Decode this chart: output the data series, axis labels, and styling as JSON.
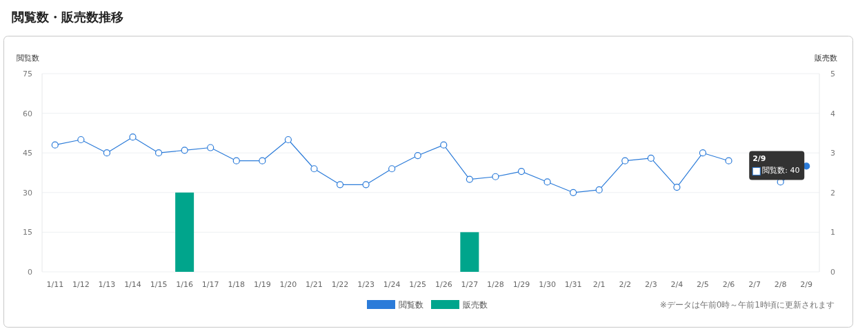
{
  "chart_data": {
    "type": "line",
    "title": "閲覧数・販売数推移",
    "ylabel": "閲覧数",
    "y2label": "販売数",
    "categories": [
      "1/11",
      "1/12",
      "1/13",
      "1/14",
      "1/15",
      "1/16",
      "1/17",
      "1/18",
      "1/19",
      "1/20",
      "1/21",
      "1/22",
      "1/23",
      "1/24",
      "1/25",
      "1/26",
      "1/27",
      "1/28",
      "1/29",
      "1/30",
      "1/31",
      "2/1",
      "2/2",
      "2/3",
      "2/4",
      "2/5",
      "2/6",
      "2/7",
      "2/8",
      "2/9"
    ],
    "series": [
      {
        "name": "閲覧数",
        "color": "#2b7bd9",
        "values": [
          48,
          50,
          45,
          51,
          45,
          46,
          47,
          42,
          42,
          50,
          39,
          33,
          33,
          39,
          44,
          48,
          35,
          36,
          38,
          34,
          30,
          31,
          42,
          43,
          32,
          45,
          42,
          null,
          34,
          40
        ]
      },
      {
        "name": "販売数",
        "type": "bar",
        "axis": "y2",
        "color": "#00a58c",
        "values": [
          0,
          0,
          0,
          0,
          0,
          2,
          0,
          0,
          0,
          0,
          0,
          0,
          0,
          0,
          0,
          0,
          1,
          0,
          0,
          0,
          0,
          0,
          0,
          0,
          0,
          0,
          0,
          0,
          0,
          0
        ]
      }
    ],
    "ylim": [
      0,
      75
    ],
    "yticks": [
      0,
      15,
      30,
      45,
      60,
      75
    ],
    "y2lim": [
      0,
      5
    ],
    "y2ticks": [
      0,
      1,
      2,
      3,
      4,
      5
    ],
    "grid": "y",
    "legend": "bottom",
    "marker": "circle",
    "annotations": [
      "2/9",
      "閲覧数: 40",
      "※データは午前0時～午前1時頃に更新されます"
    ]
  }
}
